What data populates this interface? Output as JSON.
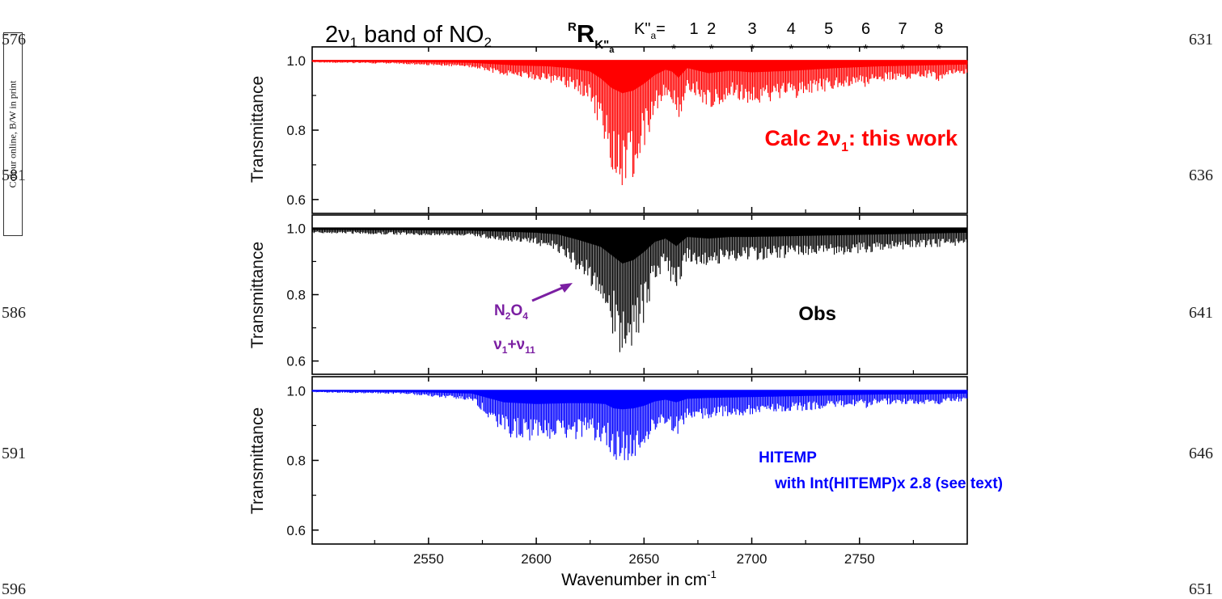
{
  "page": {
    "line_numbers_left": [
      "576",
      "581",
      "586",
      "591",
      "596"
    ],
    "line_numbers_right": [
      "631",
      "636",
      "641",
      "646",
      "651"
    ],
    "colour_note": "Colour online, B/W in print"
  },
  "header": {
    "band_title_prefix": "2ν",
    "band_title_sub": "1",
    "band_title_suffix": " band of NO",
    "band_title_sub2": "2",
    "branch_sup": "R",
    "branch_letter": "R",
    "branch_sub": "K\"",
    "branch_subsub": "a",
    "k_label": "K\"",
    "k_sub": "a",
    "k_eq": "=",
    "k_values": [
      "1",
      "2",
      "3",
      "4",
      "5",
      "6",
      "7",
      "8"
    ],
    "k_marker": "*"
  },
  "colors": {
    "calc": "#ff0000",
    "obs": "#000000",
    "hitemp": "#0000ff",
    "annotation": "#7b1fa2"
  },
  "chart_data": [
    {
      "type": "line",
      "panel": "calc",
      "ylabel": "Transmittance",
      "xlim": [
        2496,
        2800
      ],
      "ylim": [
        0.56,
        1.04
      ],
      "yticks": [
        "1.0",
        "0.8",
        "0.6"
      ],
      "series": [
        {
          "name": "Calc 2ν1: this work",
          "color": "#ff0000"
        }
      ],
      "label_prefix": "Calc  2ν",
      "label_sub": "1",
      "label_suffix": ": this work",
      "envelope_x": [
        2496,
        2540,
        2570,
        2590,
        2605,
        2615,
        2625,
        2630,
        2635,
        2640,
        2645,
        2650,
        2655,
        2660,
        2663,
        2666,
        2670,
        2680,
        2690,
        2700,
        2720,
        2740,
        2760,
        2780,
        2800
      ],
      "envelope_y": [
        0.995,
        0.99,
        0.98,
        0.95,
        0.94,
        0.92,
        0.88,
        0.8,
        0.69,
        0.63,
        0.66,
        0.74,
        0.84,
        0.9,
        0.88,
        0.81,
        0.92,
        0.86,
        0.89,
        0.87,
        0.89,
        0.92,
        0.94,
        0.95,
        0.96
      ],
      "minima": [
        {
          "x": 2663.8,
          "y": 0.88
        },
        {
          "x": 2681.3,
          "y": 0.86
        },
        {
          "x": 2700.2,
          "y": 0.87
        },
        {
          "x": 2718.3,
          "y": 0.89
        },
        {
          "x": 2735.7,
          "y": 0.91
        },
        {
          "x": 2752.9,
          "y": 0.92
        },
        {
          "x": 2770.0,
          "y": 0.93
        },
        {
          "x": 2786.8,
          "y": 0.94
        }
      ]
    },
    {
      "type": "line",
      "panel": "obs",
      "ylabel": "Transmittance",
      "xlim": [
        2496,
        2800
      ],
      "ylim": [
        0.56,
        1.04
      ],
      "yticks": [
        "1.0",
        "0.8",
        "0.6"
      ],
      "series": [
        {
          "name": "Obs",
          "color": "#000000"
        }
      ],
      "label": "Obs",
      "annotation": {
        "line1": "N",
        "line1_sub1": "2",
        "line1_mid": "O",
        "line1_sub2": "4",
        "line2_a": "ν",
        "line2_sub1": "1",
        "line2_plus": "+ν",
        "line2_sub2": "11"
      },
      "envelope_x": [
        2496,
        2540,
        2570,
        2600,
        2610,
        2620,
        2630,
        2635,
        2640,
        2645,
        2650,
        2655,
        2660,
        2665,
        2670,
        2680,
        2690,
        2700,
        2720,
        2740,
        2760,
        2780,
        2800
      ],
      "envelope_y": [
        0.985,
        0.98,
        0.975,
        0.95,
        0.93,
        0.86,
        0.78,
        0.68,
        0.58,
        0.62,
        0.72,
        0.84,
        0.88,
        0.79,
        0.9,
        0.88,
        0.9,
        0.9,
        0.91,
        0.92,
        0.93,
        0.94,
        0.95
      ],
      "minima": [
        {
          "x": 2681.3,
          "y": 0.92
        },
        {
          "x": 2700.2,
          "y": 0.91
        },
        {
          "x": 2718.3,
          "y": 0.92
        },
        {
          "x": 2735.7,
          "y": 0.93
        },
        {
          "x": 2752.9,
          "y": 0.94
        },
        {
          "x": 2770.0,
          "y": 0.94
        },
        {
          "x": 2786.8,
          "y": 0.95
        }
      ]
    },
    {
      "type": "line",
      "panel": "hitemp",
      "ylabel": "Transmittance",
      "xlabel": "Wavenumber in cm",
      "xlabel_sup": "-1",
      "xlim": [
        2496,
        2800
      ],
      "ylim": [
        0.56,
        1.04
      ],
      "xticks": [
        2550,
        2600,
        2650,
        2700,
        2750
      ],
      "yticks": [
        "1.0",
        "0.8",
        "0.6"
      ],
      "series": [
        {
          "name": "HITEMP",
          "color": "#0000ff"
        }
      ],
      "label_line1": "HITEMP",
      "label_line2": "with Int(HITEMP)x 2.8 (see text)",
      "envelope_x": [
        2496,
        2540,
        2570,
        2585,
        2600,
        2615,
        2625,
        2632,
        2636,
        2640,
        2645,
        2650,
        2655,
        2660,
        2665,
        2670,
        2680,
        2700,
        2720,
        2740,
        2760,
        2780,
        2800
      ],
      "envelope_y": [
        0.995,
        0.99,
        0.97,
        0.87,
        0.85,
        0.86,
        0.86,
        0.85,
        0.8,
        0.79,
        0.8,
        0.83,
        0.88,
        0.9,
        0.87,
        0.91,
        0.92,
        0.93,
        0.94,
        0.95,
        0.96,
        0.96,
        0.97
      ],
      "minima": [
        {
          "x": 2681.3,
          "y": 0.95
        },
        {
          "x": 2700.2,
          "y": 0.94
        },
        {
          "x": 2718.3,
          "y": 0.94
        },
        {
          "x": 2735.7,
          "y": 0.95
        },
        {
          "x": 2752.9,
          "y": 0.95
        },
        {
          "x": 2770.0,
          "y": 0.96
        },
        {
          "x": 2786.8,
          "y": 0.96
        }
      ]
    }
  ]
}
